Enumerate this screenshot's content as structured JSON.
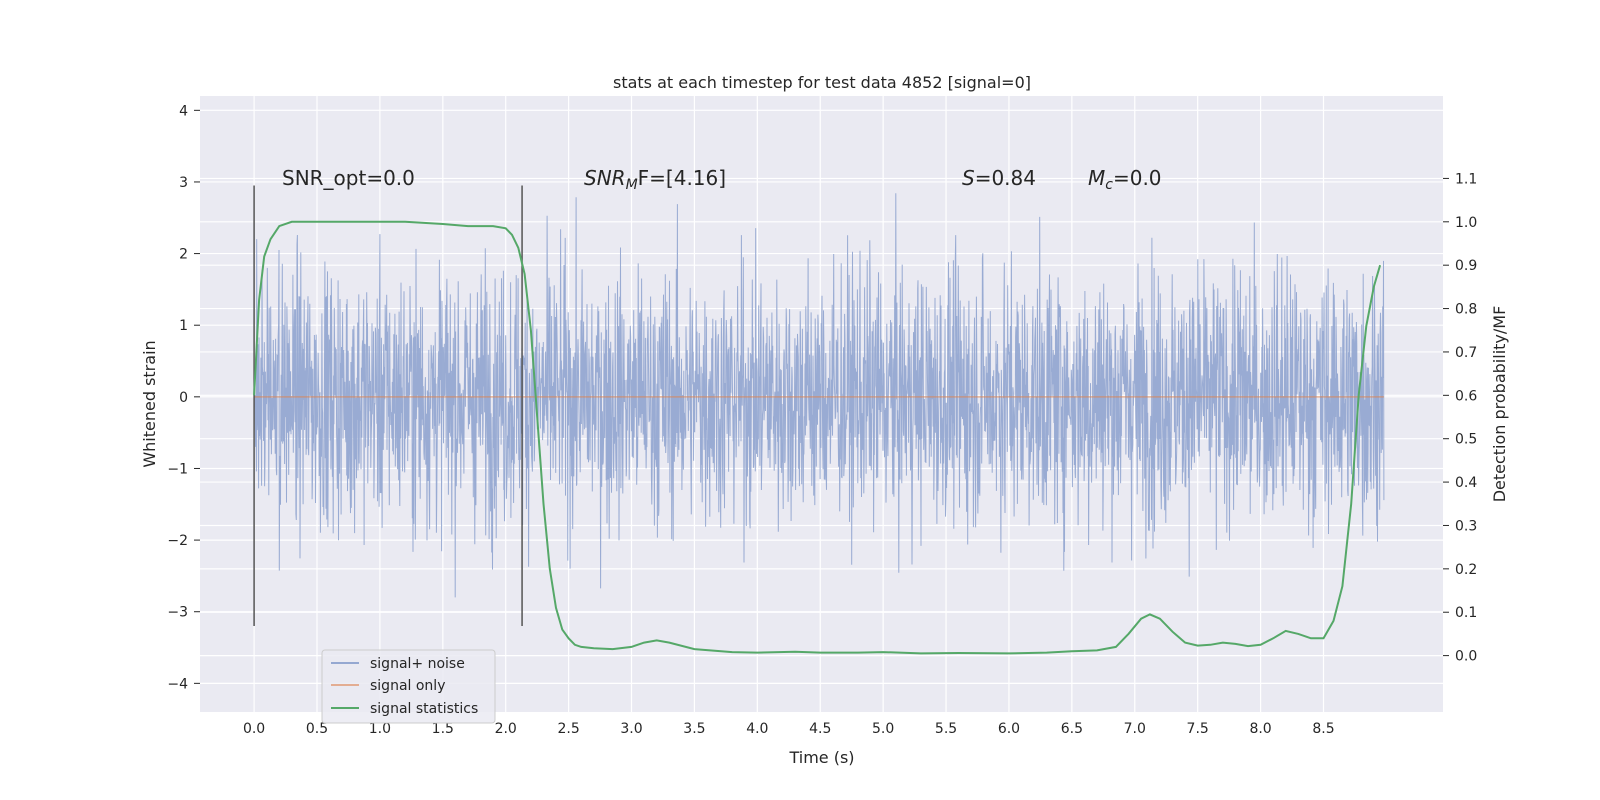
{
  "chart_data": {
    "type": "line",
    "title": "stats at each timestep for test data 4852 [signal=0]",
    "xlabel": "Time (s)",
    "ylabel": "Whitened strain",
    "y2label": "Detection probability/MF",
    "xlim": [
      -0.43,
      9.45
    ],
    "ylim": [
      -4.4,
      4.2
    ],
    "y2lim": [
      -0.13,
      1.29
    ],
    "x_ticks": [
      "0.0",
      "0.5",
      "1.0",
      "1.5",
      "2.0",
      "2.5",
      "3.0",
      "3.5",
      "4.0",
      "4.5",
      "5.0",
      "5.5",
      "6.0",
      "6.5",
      "7.0",
      "7.5",
      "8.0",
      "8.5"
    ],
    "y_ticks": [
      "4",
      "3",
      "2",
      "1",
      "0",
      "−1",
      "−2",
      "−3",
      "−4"
    ],
    "y2_ticks": [
      "1.1",
      "1.0",
      "0.9",
      "0.8",
      "0.7",
      "0.6",
      "0.5",
      "0.4",
      "0.3",
      "0.2",
      "0.1",
      "0.0"
    ],
    "grid": true,
    "legend_position": "lower-left",
    "vlines": [
      0.0,
      2.13
    ],
    "annotations": {
      "snr_opt": "SNR_opt=0.0",
      "snr_mf_main": "SNR",
      "snr_mf_sub": "M",
      "snr_mf_rest": "F=[4.16]",
      "s_main": "S",
      "s_rest": "=0.84",
      "mc_main": "M",
      "mc_sub": "c",
      "mc_rest": "=0.0"
    },
    "series": [
      {
        "name": "signal+ noise",
        "color": "#95a8d1",
        "note_range": [
          -3.8,
          3.8
        ],
        "x_range": [
          0.0,
          8.98
        ]
      },
      {
        "name": "signal only",
        "color": "#dd8452",
        "x": [
          0.0,
          8.98
        ],
        "values": [
          0.0,
          0.0
        ]
      },
      {
        "name": "signal statistics",
        "color": "#55a868",
        "axis": "right",
        "x": [
          0.0,
          0.04,
          0.08,
          0.13,
          0.2,
          0.3,
          0.5,
          0.8,
          1.2,
          1.5,
          1.7,
          1.9,
          2.0,
          2.05,
          2.1,
          2.15,
          2.2,
          2.25,
          2.3,
          2.35,
          2.4,
          2.45,
          2.5,
          2.55,
          2.6,
          2.7,
          2.85,
          3.0,
          3.1,
          3.2,
          3.3,
          3.5,
          3.8,
          4.0,
          4.3,
          4.5,
          4.8,
          5.0,
          5.3,
          5.6,
          6.0,
          6.3,
          6.5,
          6.7,
          6.85,
          6.95,
          7.05,
          7.12,
          7.2,
          7.3,
          7.4,
          7.5,
          7.6,
          7.7,
          7.8,
          7.9,
          8.0,
          8.1,
          8.2,
          8.3,
          8.4,
          8.5,
          8.58,
          8.65,
          8.72,
          8.78,
          8.84,
          8.9,
          8.95
        ],
        "values": [
          0.6,
          0.82,
          0.92,
          0.96,
          0.99,
          1.0,
          1.0,
          1.0,
          1.0,
          0.995,
          0.99,
          0.99,
          0.985,
          0.97,
          0.94,
          0.88,
          0.75,
          0.55,
          0.35,
          0.2,
          0.11,
          0.06,
          0.04,
          0.025,
          0.02,
          0.017,
          0.015,
          0.02,
          0.03,
          0.035,
          0.03,
          0.015,
          0.008,
          0.007,
          0.009,
          0.007,
          0.007,
          0.008,
          0.005,
          0.006,
          0.005,
          0.007,
          0.01,
          0.012,
          0.02,
          0.05,
          0.085,
          0.095,
          0.085,
          0.055,
          0.03,
          0.023,
          0.025,
          0.03,
          0.027,
          0.022,
          0.025,
          0.04,
          0.057,
          0.05,
          0.04,
          0.04,
          0.08,
          0.16,
          0.35,
          0.6,
          0.76,
          0.85,
          0.9
        ]
      }
    ]
  }
}
